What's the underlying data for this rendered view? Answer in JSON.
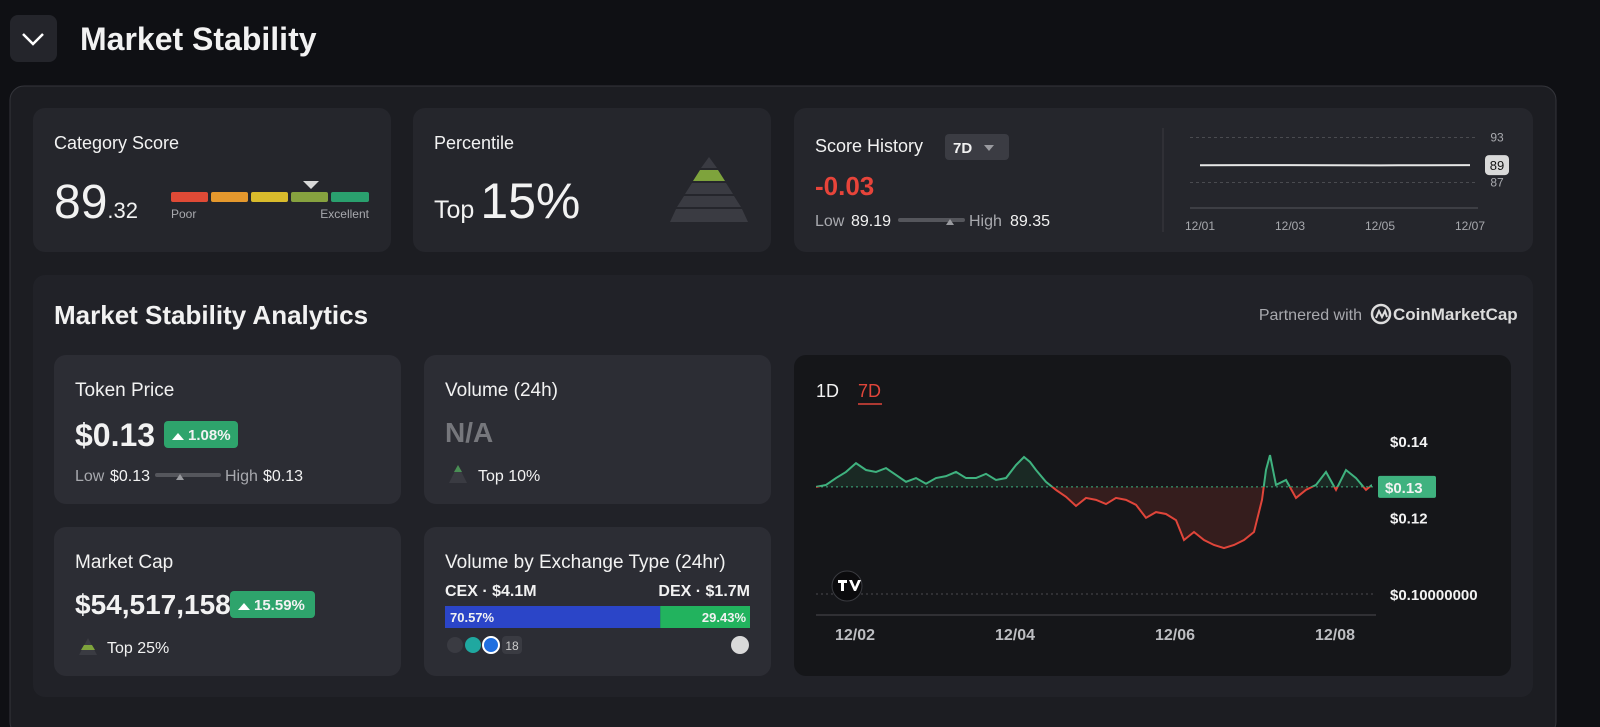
{
  "header": {
    "title": "Market Stability"
  },
  "category_score": {
    "title": "Category Score",
    "score": "89",
    "score_decimal": ".32",
    "gauge_low": "Poor",
    "gauge_high": "Excellent"
  },
  "percentile": {
    "title": "Percentile",
    "prefix": "Top",
    "value": "15%"
  },
  "score_history": {
    "title": "Score History",
    "period": "7D",
    "change": "-0.03",
    "low_label": "Low",
    "low": "89.19",
    "high_label": "High",
    "high": "89.35"
  },
  "analytics": {
    "title": "Market Stability Analytics",
    "partner_prefix": "Partnered with",
    "partner": "CoinMarketCap",
    "token_price": {
      "title": "Token Price",
      "value": "$0.13",
      "change": "1.08%",
      "low_label": "Low",
      "low": "$0.13",
      "high_label": "High",
      "high": "$0.13"
    },
    "volume": {
      "title": "Volume (24h)",
      "value": "N/A",
      "rank": "Top 10%"
    },
    "market_cap": {
      "title": "Market Cap",
      "value": "$54,517,158",
      "change": "15.59%",
      "rank": "Top 25%"
    },
    "exchange_volume": {
      "title": "Volume by Exchange Type (24hr)",
      "exchange_count": "18"
    }
  },
  "chart_data": [
    {
      "type": "line",
      "color": "#e6e6e6",
      "categories": [
        "12/01",
        null,
        "12/03",
        null,
        "12/05",
        null,
        "12/07"
      ],
      "values": [
        89.3,
        89.31,
        89.31,
        89.3,
        89.29,
        89.3,
        89.32
      ],
      "value_labels": [
        null,
        null,
        null,
        null,
        null,
        null,
        "89"
      ],
      "ylim": [
        84,
        94
      ],
      "yticks": [
        87,
        93
      ]
    },
    {
      "type": "price-line",
      "up_color": "#3fb27f",
      "down_color": "#e0453a",
      "tabs": [
        "1D",
        "7D"
      ],
      "active_tab": 1,
      "x": [
        1.5125,
        1.6375,
        1.7625,
        1.8875,
        2.0125,
        2.1375,
        2.2625,
        2.3875,
        2.5125,
        2.6375,
        2.7625,
        2.8875,
        3.0125,
        3.1375,
        3.2625,
        3.3875,
        3.5125,
        3.6375,
        3.7625,
        3.8875,
        4.0125,
        4.1125,
        4.1875,
        4.2625,
        4.3875,
        4.5125,
        4.6375,
        4.7625,
        4.8875,
        5.0125,
        5.1375,
        5.2625,
        5.3875,
        5.5125,
        5.6375,
        5.7625,
        5.8875,
        6.0125,
        6.1125,
        6.2375,
        6.3625,
        6.4875,
        6.6125,
        6.7375,
        6.8625,
        6.9875,
        7.0875,
        7.1375,
        7.1875,
        7.2625,
        7.3875,
        7.5125,
        7.6375,
        7.7625,
        7.8875,
        8.0125,
        8.1375,
        8.2625,
        8.3875,
        8.4625
      ],
      "values": [
        0.128,
        0.1285,
        0.1303,
        0.1319,
        0.1342,
        0.1324,
        0.1319,
        0.1329,
        0.1311,
        0.1293,
        0.1303,
        0.1288,
        0.1303,
        0.1308,
        0.1319,
        0.1303,
        0.1303,
        0.1314,
        0.1298,
        0.1303,
        0.1337,
        0.1358,
        0.1345,
        0.1324,
        0.1293,
        0.1272,
        0.1254,
        0.123,
        0.1251,
        0.1246,
        0.1235,
        0.1251,
        0.1246,
        0.1233,
        0.1199,
        0.1214,
        0.1209,
        0.1193,
        0.1141,
        0.1162,
        0.1141,
        0.1128,
        0.112,
        0.1128,
        0.1141,
        0.1162,
        0.1246,
        0.1324,
        0.1363,
        0.1285,
        0.1298,
        0.1251,
        0.1272,
        0.1285,
        0.1319,
        0.1272,
        0.1324,
        0.1303,
        0.1272,
        0.1285
      ],
      "xlim": [
        1.5125,
        8.4625
      ],
      "xticks": [
        {
          "value": 2,
          "label": "12/02"
        },
        {
          "value": 4,
          "label": "12/04"
        },
        {
          "value": 6,
          "label": "12/06"
        },
        {
          "value": 8,
          "label": "12/08"
        }
      ],
      "ylim": [
        0.0945,
        0.1507
      ],
      "yticks": [
        {
          "value": 0.1,
          "label": "$0.10000000"
        },
        {
          "value": 0.12,
          "label": "$0.12"
        },
        {
          "value": 0.14,
          "label": "$0.14"
        }
      ],
      "price_tag": {
        "value": 0.128,
        "label": "$0.13"
      }
    },
    {
      "type": "stacked-bar",
      "categories": [
        "CEX · $4.1M",
        "DEX · $1.7M"
      ],
      "values": [
        70.57,
        29.43
      ],
      "value_labels": [
        "70.57%",
        "29.43%"
      ],
      "colors": [
        "#2b45c8",
        "#22b35e"
      ]
    }
  ]
}
